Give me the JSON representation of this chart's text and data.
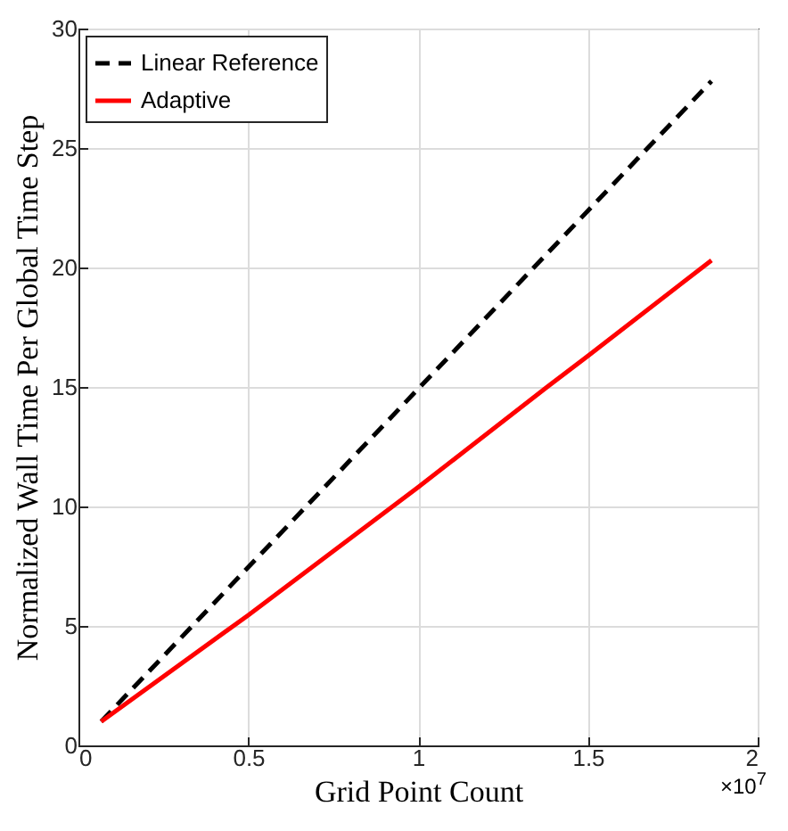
{
  "chart_data": {
    "type": "line",
    "xlabel": "Grid Point Count",
    "ylabel": "Normalized Wall Time Per Global Time Step",
    "xlim": [
      0,
      2
    ],
    "xticks": [
      0,
      0.5,
      1,
      1.5,
      2
    ],
    "ylim": [
      0,
      30
    ],
    "yticks": [
      0,
      5,
      10,
      15,
      20,
      25,
      30
    ],
    "grid": true,
    "legend": "top left",
    "annotations": [
      "×10$^{7}$"
    ],
    "series": [
      {
        "name": "Linear Reference",
        "color": "#000000",
        "line_style": "dashed",
        "x": [
          0.067,
          1.864
        ],
        "values": [
          1,
          27.8
        ]
      },
      {
        "name": "Adaptive",
        "color": "#ff0000",
        "line_style": "solid",
        "x": [
          0.067,
          0.5,
          1.0,
          1.38,
          1.5,
          1.864
        ],
        "values": [
          1,
          5.45,
          10.8,
          15,
          16.3,
          20.3
        ]
      }
    ]
  }
}
